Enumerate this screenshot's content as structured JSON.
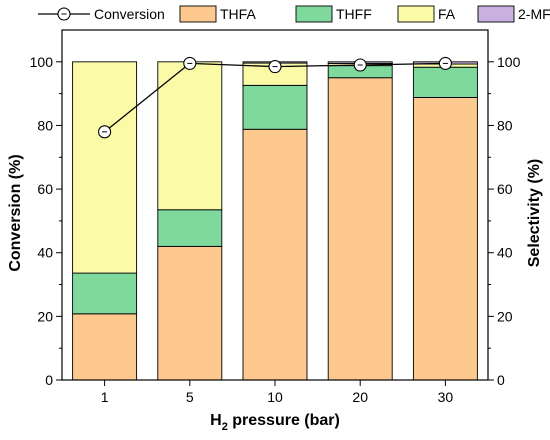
{
  "chart_data": {
    "type": "bar",
    "stacked": true,
    "categories": [
      "1",
      "5",
      "10",
      "20",
      "30"
    ],
    "series": [
      {
        "name": "THFA",
        "color": "#fdc98e",
        "values": [
          20.8,
          42.0,
          78.8,
          95.0,
          88.8
        ]
      },
      {
        "name": "THFF",
        "color": "#7fd89c",
        "values": [
          12.8,
          11.5,
          13.8,
          3.8,
          9.5
        ]
      },
      {
        "name": "FA",
        "color": "#fbfaa6",
        "values": [
          66.4,
          46.5,
          7.0,
          0.7,
          1.0
        ]
      },
      {
        "name": "2-MF",
        "color": "#c8b1de",
        "values": [
          0.0,
          0.0,
          0.4,
          0.5,
          0.7
        ]
      }
    ],
    "line": {
      "name": "Conversion",
      "axis": "left",
      "values": [
        78,
        99.5,
        98.5,
        99,
        99.5
      ]
    },
    "xlabel_main": "H",
    "xlabel_sub": "2",
    "xlabel_rest": " pressure (bar)",
    "ylabel_left": "Conversion (%)",
    "ylabel_right": "Selectivity (%)",
    "ylim": [
      0,
      110
    ],
    "yticks": [
      "0",
      "20",
      "40",
      "60",
      "80",
      "100"
    ],
    "legend_position": "top",
    "grid": false
  }
}
